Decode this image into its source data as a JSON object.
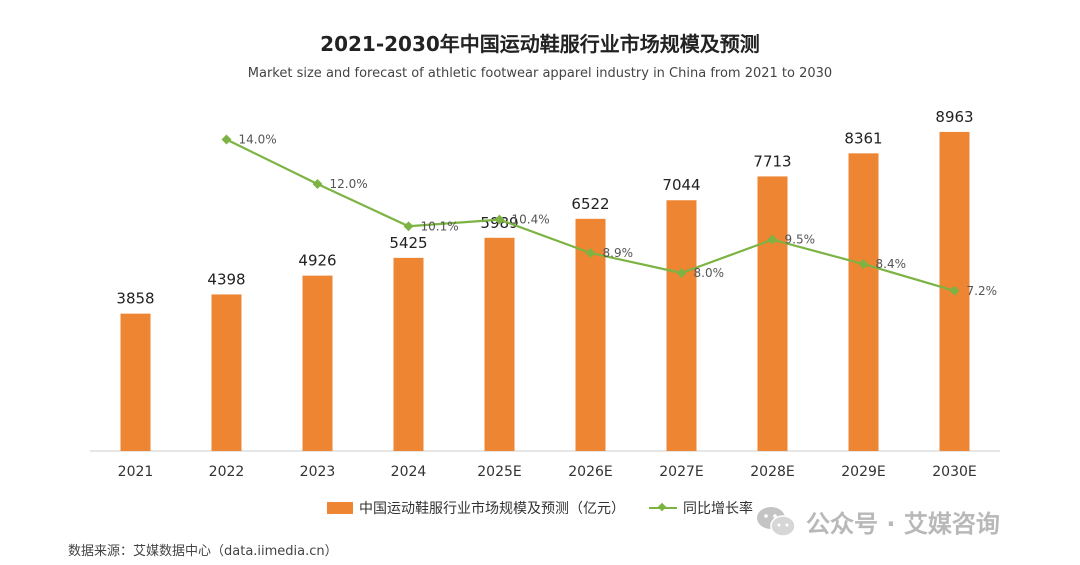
{
  "title": "2021-2030年中国运动鞋服行业市场规模及预测",
  "subtitle": "Market size and forecast of athletic footwear apparel industry in China from 2021 to 2030",
  "chart_data": {
    "type": "bar",
    "categories": [
      "2021",
      "2022",
      "2023",
      "2024",
      "2025E",
      "2026E",
      "2027E",
      "2028E",
      "2029E",
      "2030E"
    ],
    "series": [
      {
        "name": "中国运动鞋服行业市场规模及预测（亿元）",
        "type": "bar",
        "values": [
          3858,
          4398,
          4926,
          5425,
          5989,
          6522,
          7044,
          7713,
          8361,
          8963
        ],
        "labels": [
          "3858",
          "4398",
          "4926",
          "5425",
          "5989",
          "6522",
          "7044",
          "7713",
          "8361",
          "8963"
        ]
      },
      {
        "name": "同比增长率",
        "type": "line",
        "values": [
          null,
          14.0,
          12.0,
          10.1,
          10.4,
          8.9,
          8.0,
          9.5,
          8.4,
          7.2
        ],
        "labels": [
          "",
          "14.0%",
          "12.0%",
          "10.1%",
          "10.4%",
          "8.9%",
          "8.0%",
          "9.5%",
          "8.4%",
          "7.2%"
        ]
      }
    ],
    "ylim": [
      0,
      10000
    ],
    "y2lim": [
      0,
      16
    ],
    "grid": false,
    "legend_position": "bottom"
  },
  "legend": {
    "bar_label": "中国运动鞋服行业市场规模及预测（亿元）",
    "line_label": "同比增长率"
  },
  "source": "数据来源：艾媒数据中心（data.iimedia.cn）",
  "watermark": "公众号 · 艾媒咨询",
  "colors": {
    "bar": "#ee8533",
    "line": "#7cb342",
    "axis": "#cccccc"
  }
}
